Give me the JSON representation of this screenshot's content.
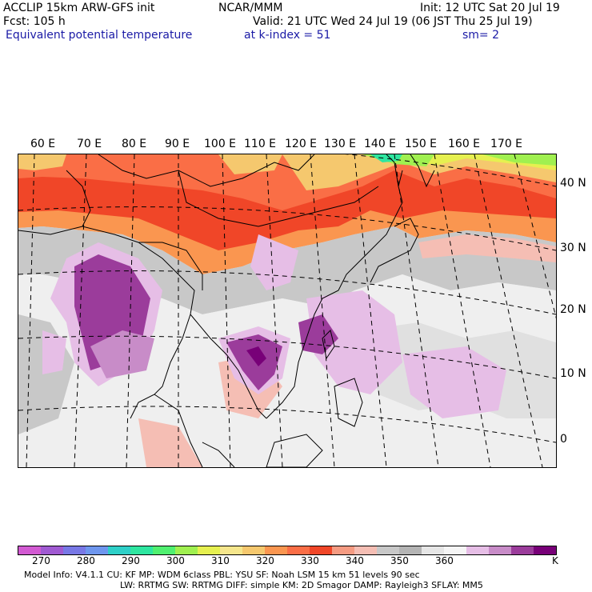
{
  "header": {
    "left_line1": "ACCLIP 15km ARW-GFS init",
    "center_line1": "NCAR/MMM",
    "right_line1": "Init: 12 UTC Sat 20 Jul 19",
    "left_line2": "Fcst:  105 h",
    "right_line2": "Valid: 21 UTC Wed 24 Jul 19 (06 JST Thu 25 Jul 19)",
    "field_name": "Equivalent potential temperature",
    "level": "at k-index =  51",
    "smoothing": "sm= 2"
  },
  "map": {
    "lon_labels": [
      "60 E",
      "70 E",
      "80 E",
      "90 E",
      "100 E",
      "110 E",
      "120 E",
      "130 E",
      "140 E",
      "150 E",
      "160 E",
      "170 E"
    ],
    "lat_labels": [
      "40 N",
      "30 N",
      "20 N",
      "10 N",
      "0"
    ],
    "colors": {
      "ocean_background": "#e6e6e6",
      "coast": "#000000"
    }
  },
  "colorbar": {
    "colors": [
      "#d25ad2",
      "#a05ad2",
      "#7878e6",
      "#6e96ee",
      "#2ed0c8",
      "#2ee6a0",
      "#50f070",
      "#a0f050",
      "#e6f050",
      "#f5e68c",
      "#f5c86e",
      "#fa9650",
      "#fa6e46",
      "#f04628",
      "#f59b82",
      "#f5beb4",
      "#c8c8c8",
      "#b4b4b4",
      "#e6e6e6",
      "#f5f5f5",
      "#e6bee6",
      "#c88cc8",
      "#9b3c9b",
      "#780078"
    ],
    "tick_labels": [
      "270",
      "280",
      "290",
      "300",
      "310",
      "320",
      "330",
      "340",
      "350",
      "360"
    ],
    "unit": "K"
  },
  "model_info": {
    "line1": "Model Info: V4.1.1      CU: KF       MP: WDM 6class    PBL: YSU       SF: Noah LSM       15 km     51 levels    90 sec",
    "line2": "LW: RRTMG      SW: RRTMG    DIFF: simple KM: 2D Smagor DAMP: Rayleigh3   SFLAY: MM5"
  }
}
